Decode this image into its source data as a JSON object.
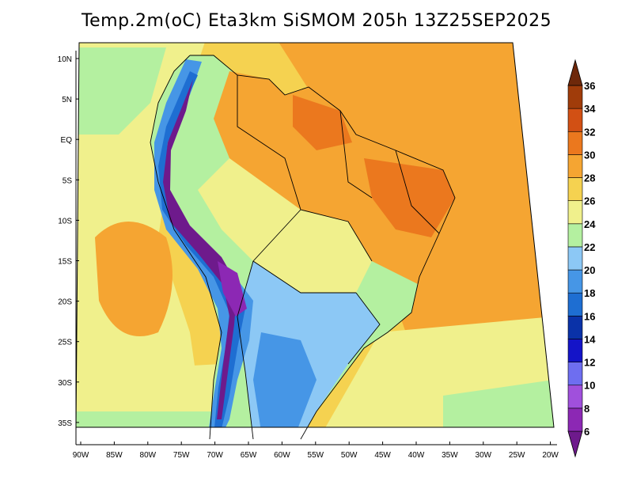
{
  "title": "Temp.2m(oC) Eta3km SiSMOM 205h 13Z25SEP2025",
  "map": {
    "lat_labels": [
      "10N",
      "5N",
      "EQ",
      "5S",
      "10S",
      "15S",
      "20S",
      "25S",
      "30S",
      "35S"
    ],
    "lon_labels": [
      "90W",
      "85W",
      "80W",
      "75W",
      "70W",
      "65W",
      "60W",
      "55W",
      "50W",
      "45W",
      "40W",
      "35W",
      "30W",
      "25W",
      "20W"
    ]
  },
  "colorbar": {
    "labels": [
      "6",
      "8",
      "10",
      "12",
      "14",
      "16",
      "18",
      "20",
      "22",
      "24",
      "26",
      "28",
      "30",
      "32",
      "34",
      "36"
    ],
    "colors": [
      "#6e1a8c",
      "#8c28b4",
      "#a050dc",
      "#6e6ef0",
      "#1414c8",
      "#0a32a8",
      "#1e6ed2",
      "#4696e6",
      "#8cc8f5",
      "#b4f0a0",
      "#f0f08c",
      "#f5d250",
      "#f5a532",
      "#eb781e",
      "#d25014",
      "#a03c0a",
      "#6e280a"
    ]
  }
}
